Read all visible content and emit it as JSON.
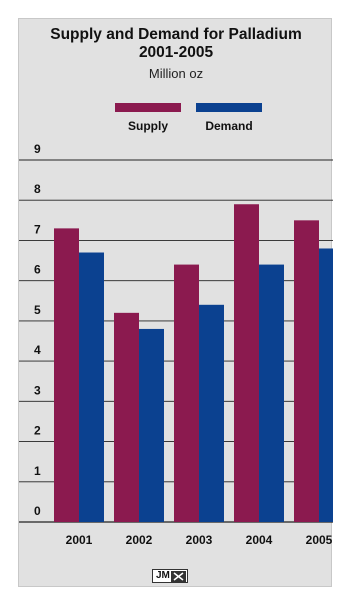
{
  "chart_data": {
    "type": "bar",
    "title_lines": [
      "Supply and Demand for Palladium",
      "2001-2005"
    ],
    "subtitle": "Million oz",
    "categories": [
      "2001",
      "2002",
      "2003",
      "2004",
      "2005"
    ],
    "series": [
      {
        "name": "Supply",
        "color": "#8b1a4f",
        "values": [
          7.3,
          5.2,
          6.4,
          7.9,
          7.5
        ]
      },
      {
        "name": "Demand",
        "color": "#0b4190",
        "values": [
          6.7,
          4.8,
          5.4,
          6.4,
          6.8
        ]
      }
    ],
    "yticks": [
      "0",
      "1",
      "2",
      "3",
      "4",
      "5",
      "6",
      "7",
      "8",
      "9"
    ],
    "ylim": [
      0,
      9
    ],
    "grid": true,
    "legend_position": "top-center",
    "logo_text": "JM"
  }
}
